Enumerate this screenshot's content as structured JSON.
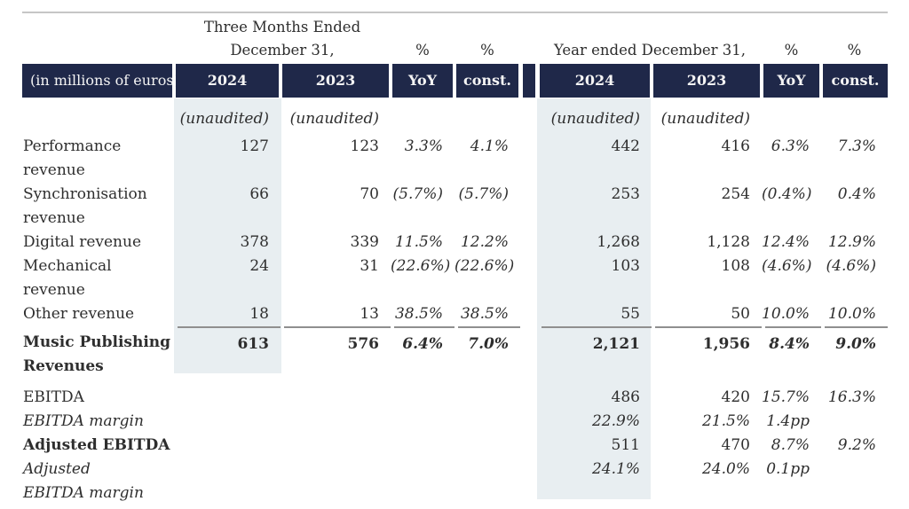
{
  "unit_label": "(in millions of euros)",
  "header": {
    "q4_title_line1": "Three Months Ended",
    "q4_title_line2": "December 31,",
    "fy_title": "Year ended December 31,",
    "pct": "%",
    "col_2024": "2024",
    "col_2023": "2023",
    "col_yoy": "YoY",
    "col_const": "const."
  },
  "colors": {
    "header_navy": "#1f2849",
    "column_shade": "#e8eef1",
    "sum_rule_grey": "#8f8f8f",
    "top_line_grey": "#c6c6c6"
  },
  "rows": [
    {
      "type": "unaudited",
      "label_lines": [],
      "cells": [
        "(unaudited)",
        "(unaudited)",
        "",
        "",
        "(unaudited)",
        "(unaudited)",
        "",
        ""
      ]
    },
    {
      "type": "data",
      "label_lines": [
        "Performance",
        "revenue"
      ],
      "cells": [
        "127",
        "123",
        "3.3%",
        "4.1%",
        "442",
        "416",
        "6.3%",
        "7.3%"
      ]
    },
    {
      "type": "data",
      "label_lines": [
        "Synchronisation",
        "revenue"
      ],
      "cells": [
        "66",
        "70",
        "(5.7%)",
        "(5.7%)",
        "253",
        "254",
        "(0.4%)",
        "0.4%"
      ]
    },
    {
      "type": "data",
      "label_lines": [
        "Digital revenue"
      ],
      "cells": [
        "378",
        "339",
        "11.5%",
        "12.2%",
        "1,268",
        "1,128",
        "12.4%",
        "12.9%"
      ]
    },
    {
      "type": "data",
      "label_lines": [
        "Mechanical",
        "revenue"
      ],
      "cells": [
        "24",
        "31",
        "(22.6%)",
        "(22.6%)",
        "103",
        "108",
        "(4.6%)",
        "(4.6%)"
      ]
    },
    {
      "type": "data",
      "label_lines": [
        "Other revenue"
      ],
      "cells": [
        "18",
        "13",
        "38.5%",
        "38.5%",
        "55",
        "50",
        "10.0%",
        "10.0%"
      ]
    },
    {
      "type": "total",
      "label_lines": [
        "Music Publishing",
        "Revenues"
      ],
      "cells": [
        "613",
        "576",
        "6.4%",
        "7.0%",
        "2,121",
        "1,956",
        "8.4%",
        "9.0%"
      ]
    },
    {
      "type": "data",
      "spacer_before": true,
      "label_lines": [
        "EBITDA"
      ],
      "cells": [
        "",
        "",
        "",
        "",
        "486",
        "420",
        "15.7%",
        "16.3%"
      ]
    },
    {
      "type": "margin",
      "label_lines": [
        "EBITDA margin"
      ],
      "cells": [
        "",
        "",
        "",
        "",
        "22.9%",
        "21.5%",
        "1.4pp",
        ""
      ]
    },
    {
      "type": "semibold",
      "label_lines": [
        "Adjusted EBITDA"
      ],
      "cells": [
        "",
        "",
        "",
        "",
        "511",
        "470",
        "8.7%",
        "9.2%"
      ]
    },
    {
      "type": "margin",
      "label_lines": [
        "Adjusted",
        "EBITDA margin"
      ],
      "cells": [
        "",
        "",
        "",
        "",
        "24.1%",
        "24.0%",
        "0.1pp",
        ""
      ]
    }
  ]
}
